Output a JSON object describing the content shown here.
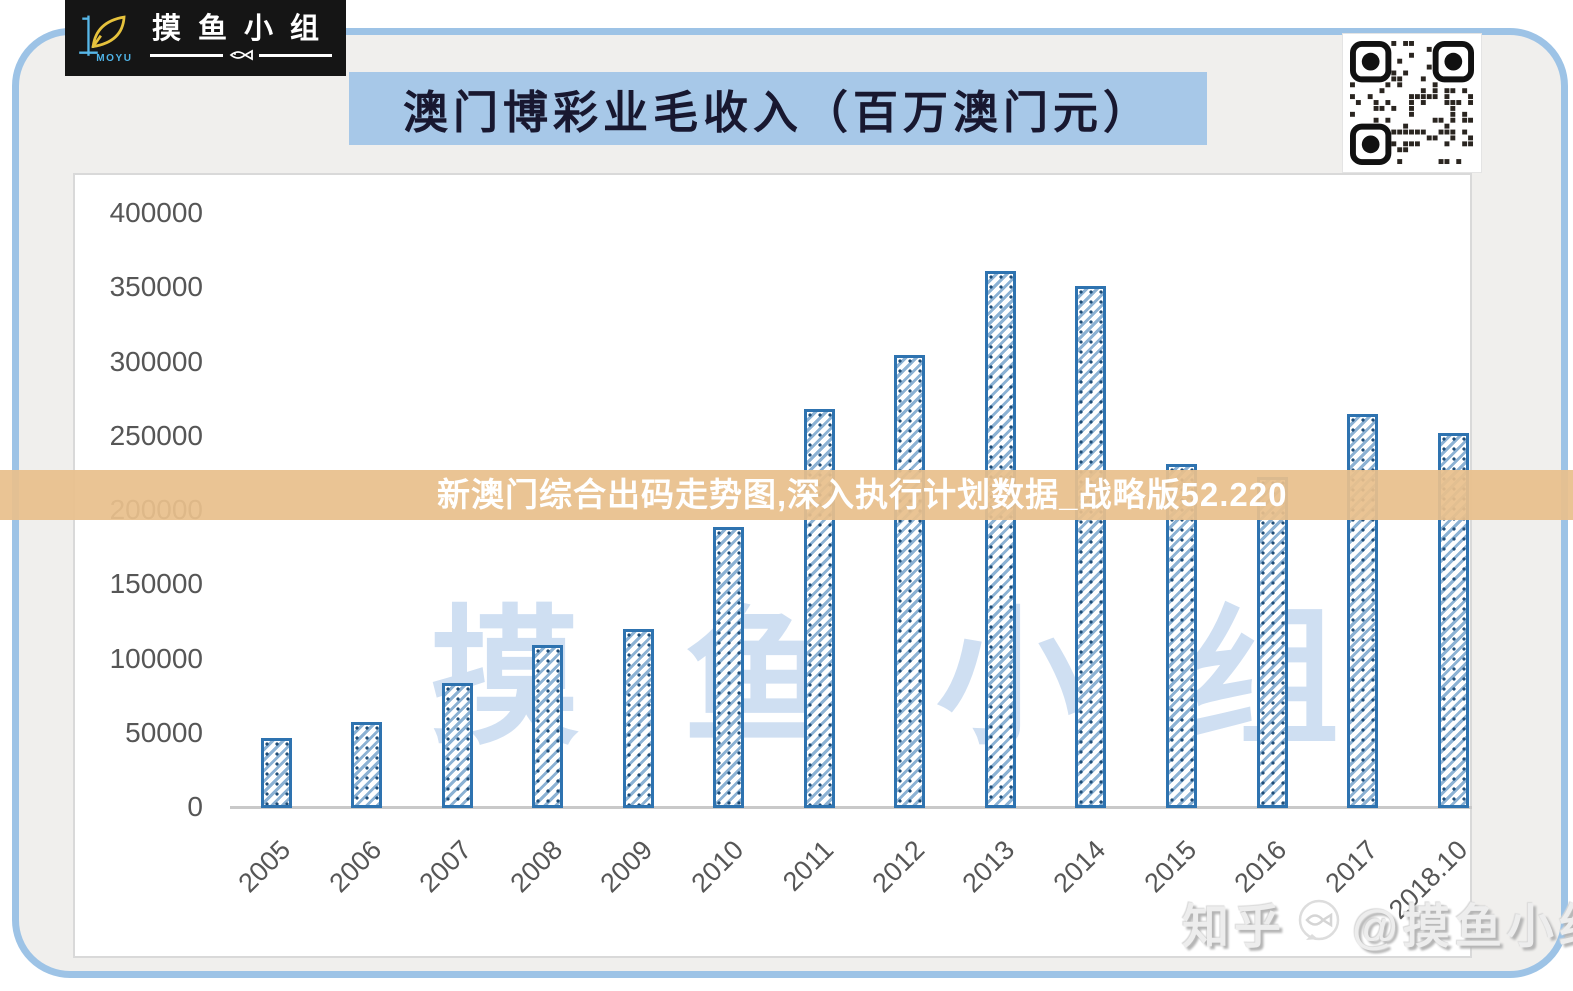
{
  "page": {
    "background": "#ffffff",
    "card_bg": "#f0efed",
    "card_border": "#9dc3e6"
  },
  "brand": {
    "name_cn": "摸鱼小组",
    "name_en": "MOYU"
  },
  "header": {
    "title": "澳门博彩业毛收入（百万澳门元）",
    "banner_color": "#a7c8e8"
  },
  "overlay_banner": {
    "text": "新澳门综合出码走势图,深入执行计划数据_战略版52.220",
    "color": "#e8c08c"
  },
  "watermarks": {
    "center": "摸鱼小组",
    "bottom_right_prefix": "知乎",
    "bottom_right_handle": "@摸鱼小组"
  },
  "icons": {
    "qr": "qr-code",
    "fish": "fish-icon",
    "zhihu_bubble": "fish-bubble-icon"
  },
  "chart_data": {
    "type": "bar",
    "title": "澳门博彩业毛收入（百万澳门元）",
    "xlabel": "",
    "ylabel": "",
    "categories": [
      "2005",
      "2006",
      "2007",
      "2008",
      "2009",
      "2010",
      "2011",
      "2012",
      "2013",
      "2014",
      "2015",
      "2016",
      "2017",
      "2018.10"
    ],
    "values": [
      47000,
      58000,
      84000,
      110000,
      120500,
      189500,
      269000,
      305000,
      361500,
      351500,
      231500,
      223000,
      265500,
      252500
    ],
    "ylim": [
      0,
      400000
    ],
    "yticks": [
      0,
      50000,
      100000,
      150000,
      200000,
      250000,
      300000,
      350000,
      400000
    ],
    "grid": false,
    "legend": null,
    "bar_border_color": "#2e73b0",
    "bar_fill": "white with blue diagonal hatch"
  }
}
